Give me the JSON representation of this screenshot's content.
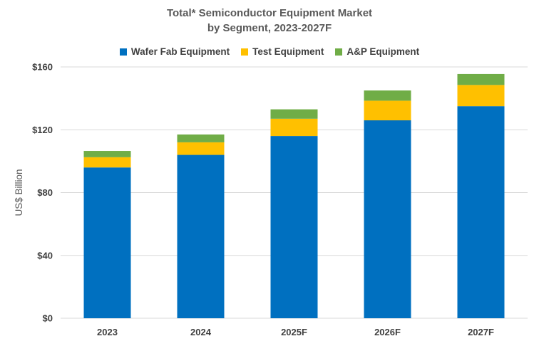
{
  "chart_data": {
    "type": "bar",
    "stacked": true,
    "title_line1": "Total* Semiconductor Equipment Market",
    "title_line2": "by Segment, 2023-2027F",
    "xlabel": "",
    "ylabel": "US$ Billion",
    "categories": [
      "2023",
      "2024",
      "2025F",
      "2026F",
      "2027F"
    ],
    "series": [
      {
        "name": "Wafer Fab Equipment",
        "color": "#0070C0",
        "values": [
          96,
          104,
          116,
          126,
          135
        ]
      },
      {
        "name": "Test Equipment",
        "color": "#FFC000",
        "values": [
          6.5,
          8,
          11,
          12.5,
          13.5
        ]
      },
      {
        "name": "A&P Equipment",
        "color": "#70AD47",
        "values": [
          4,
          5,
          6,
          6.5,
          7
        ]
      }
    ],
    "ylim": [
      0,
      160
    ],
    "yticks": [
      0,
      40,
      80,
      120,
      160
    ],
    "ytick_labels": [
      "$0",
      "$40",
      "$80",
      "$120",
      "$160"
    ],
    "grid": true,
    "legend_position": "top"
  }
}
